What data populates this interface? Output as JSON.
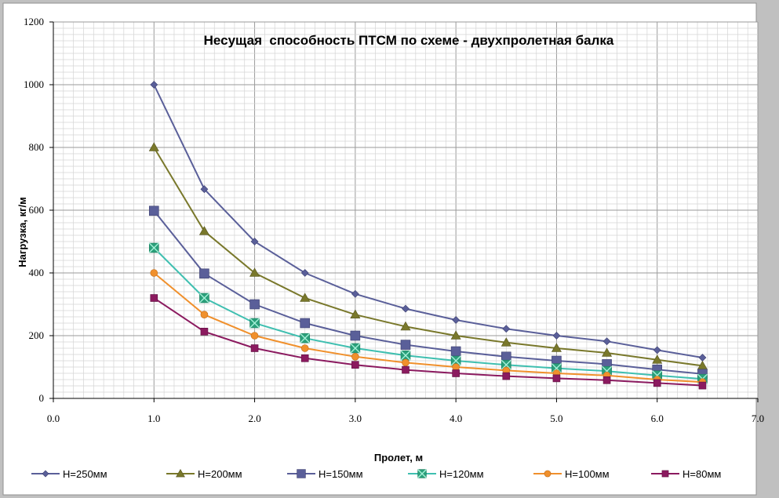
{
  "chart_data": {
    "type": "line",
    "title": "Несущая  способность ПТСМ по схеме - двухпролетная балка",
    "xlabel": "Пролет, м",
    "ylabel": "Нагрузка, кг/м",
    "xlim": [
      0,
      7
    ],
    "ylim": [
      0,
      1200
    ],
    "x_ticks": [
      "0.0",
      "1.0",
      "2.0",
      "3.0",
      "4.0",
      "5.0",
      "6.0",
      "7.0"
    ],
    "y_ticks": [
      "0",
      "200",
      "400",
      "600",
      "800",
      "1000",
      "1200"
    ],
    "grid": true,
    "legend_position": "bottom",
    "x": [
      1.0,
      1.5,
      2.0,
      2.5,
      3.0,
      3.5,
      4.0,
      4.5,
      5.0,
      5.5,
      6.0,
      6.45
    ],
    "series": [
      {
        "name": "Н=250мм",
        "color": "#5a5f99",
        "marker": "diamond",
        "values": [
          1000,
          667,
          500,
          400,
          333,
          286,
          250,
          222,
          200,
          182,
          154,
          130
        ]
      },
      {
        "name": "Н=200мм",
        "color": "#79782b",
        "marker": "triangle",
        "values": [
          800,
          533,
          400,
          320,
          267,
          229,
          200,
          178,
          160,
          145,
          123,
          104
        ]
      },
      {
        "name": "Н=150мм",
        "color": "#5a5f99",
        "marker": "square",
        "values": [
          598,
          398,
          300,
          240,
          200,
          171,
          150,
          133,
          120,
          109,
          92,
          78
        ]
      },
      {
        "name": "Н=120мм",
        "color": "#3fbfb0",
        "marker": "square-x",
        "values": [
          480,
          320,
          240,
          192,
          160,
          137,
          120,
          107,
          96,
          87,
          73,
          62
        ]
      },
      {
        "name": "Н=100мм",
        "color": "#f0902c",
        "marker": "circle",
        "values": [
          400,
          267,
          200,
          160,
          133,
          114,
          100,
          89,
          80,
          73,
          60,
          52
        ]
      },
      {
        "name": "Н=80мм",
        "color": "#8b1a5f",
        "marker": "square-small",
        "values": [
          320,
          213,
          160,
          128,
          107,
          91,
          80,
          71,
          64,
          58,
          49,
          41
        ]
      }
    ]
  }
}
